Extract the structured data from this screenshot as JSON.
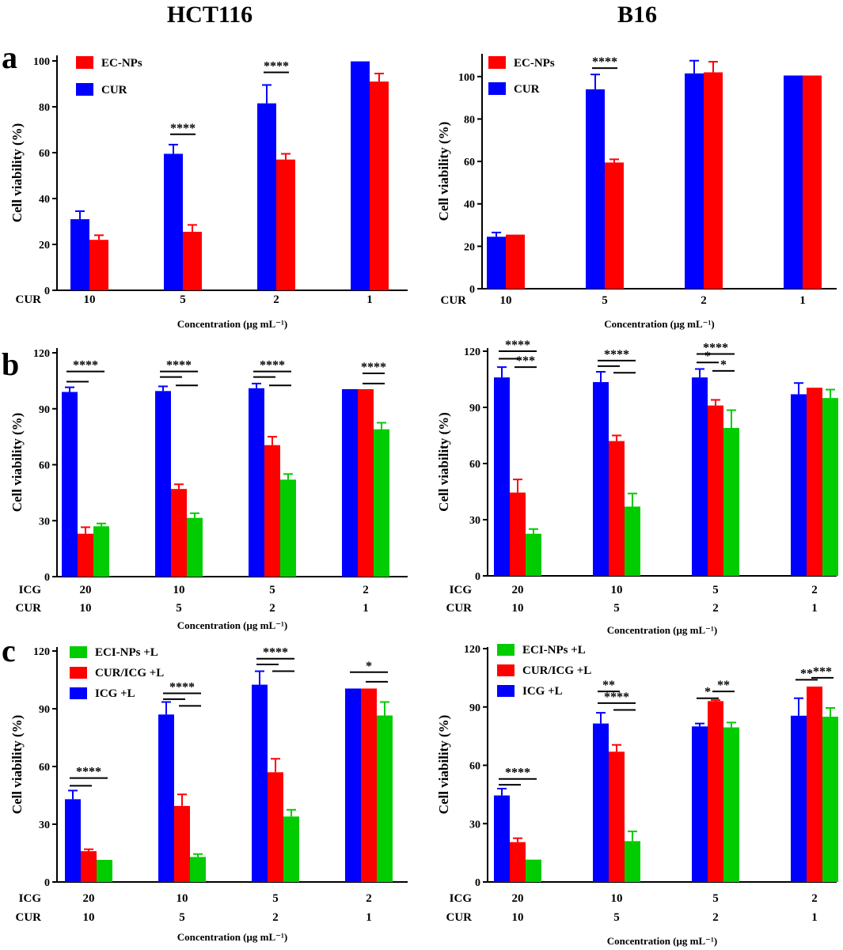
{
  "figure": {
    "column_titles": [
      "HCT116",
      "B16"
    ],
    "panel_labels": [
      "a",
      "b",
      "c"
    ]
  },
  "chart_data": [
    {
      "id": "a1",
      "type": "bar",
      "panel": "a",
      "cell_line": "HCT116",
      "ylabel": "Cell viability (%)",
      "xlabel": "Concentration (μg mL⁻¹)",
      "ylim": [
        0,
        100
      ],
      "yticks": [
        "0",
        "20",
        "40",
        "60",
        "80",
        "100"
      ],
      "row_labels": [
        {
          "name": "CUR",
          "values": [
            "10",
            "5",
            "2",
            "1"
          ]
        }
      ],
      "legend": [
        "EC-NPs",
        "CUR"
      ],
      "series": [
        {
          "name": "CUR",
          "color": "#0000ff",
          "values": [
            31,
            59.5,
            81.5,
            99.8
          ],
          "errors": [
            3.5,
            4,
            8,
            0
          ]
        },
        {
          "name": "EC-NPs",
          "color": "#ff0000",
          "values": [
            22,
            25.5,
            57,
            91
          ],
          "errors": [
            2,
            3,
            2.5,
            3.5
          ]
        }
      ],
      "significance": [
        {
          "group": 1,
          "label": "****",
          "from": 0,
          "to": 1,
          "y": 68
        },
        {
          "group": 2,
          "label": "****",
          "from": 0,
          "to": 1,
          "y": 95
        }
      ]
    },
    {
      "id": "a2",
      "type": "bar",
      "panel": "a",
      "cell_line": "B16",
      "ylabel": "Cell viability (%)",
      "xlabel": "Concentration (μg mL⁻¹)",
      "ylim": [
        0,
        110
      ],
      "yticks": [
        "0",
        "20",
        "40",
        "60",
        "80",
        "100"
      ],
      "row_labels": [
        {
          "name": "CUR",
          "values": [
            "10",
            "5",
            "2",
            "1"
          ]
        }
      ],
      "legend": [
        "EC-NPs",
        "CUR"
      ],
      "series": [
        {
          "name": "CUR",
          "color": "#0000ff",
          "values": [
            24.5,
            94,
            101.5,
            100.5
          ],
          "errors": [
            2,
            7,
            6,
            0
          ]
        },
        {
          "name": "EC-NPs",
          "color": "#ff0000",
          "values": [
            25.5,
            59.5,
            102,
            100.5
          ],
          "errors": [
            0,
            1.5,
            5,
            0
          ]
        }
      ],
      "significance": [
        {
          "group": 1,
          "label": "****",
          "from": 0,
          "to": 1,
          "y": 104
        }
      ]
    },
    {
      "id": "b1",
      "type": "bar",
      "panel": "b",
      "cell_line": "HCT116",
      "ylabel": "Cell viability (%)",
      "xlabel": "Concentration (μg mL⁻¹)",
      "ylim": [
        0,
        120
      ],
      "yticks": [
        "0",
        "30",
        "60",
        "90",
        "120"
      ],
      "row_labels": [
        {
          "name": "ICG",
          "values": [
            "20",
            "10",
            "5",
            "2"
          ]
        },
        {
          "name": "CUR",
          "values": [
            "10",
            "5",
            "2",
            "1"
          ]
        }
      ],
      "legend": [],
      "series": [
        {
          "name": "ICG +L",
          "color": "#0000ff",
          "values": [
            99,
            99.5,
            101,
            100.5
          ],
          "errors": [
            2.5,
            2.5,
            2.5,
            0
          ]
        },
        {
          "name": "CUR/ICG +L",
          "color": "#ff0000",
          "values": [
            23,
            47,
            70.5,
            100.5
          ],
          "errors": [
            3.5,
            2.5,
            4.5,
            0
          ]
        },
        {
          "name": "ECI-NPs +L",
          "color": "#00cc00",
          "values": [
            27,
            31.5,
            52,
            79
          ],
          "errors": [
            1.5,
            2.5,
            3,
            3.5
          ]
        }
      ],
      "significance": [
        {
          "group": 0,
          "label": "****",
          "from": 0,
          "to": 2,
          "y": 110
        },
        {
          "group": 0,
          "label": "",
          "from": 0,
          "to": 1,
          "y": 104.5
        },
        {
          "group": 1,
          "label": "****",
          "from": 0,
          "to": 2,
          "y": 110
        },
        {
          "group": 1,
          "label": "",
          "from": 0,
          "to": 1,
          "y": 107
        },
        {
          "group": 1,
          "label": "",
          "from": 1,
          "to": 2,
          "y": 102.5
        },
        {
          "group": 2,
          "label": "****",
          "from": 0,
          "to": 2,
          "y": 110
        },
        {
          "group": 2,
          "label": "",
          "from": 0,
          "to": 1,
          "y": 107
        },
        {
          "group": 2,
          "label": "",
          "from": 1,
          "to": 2,
          "y": 102.5
        },
        {
          "group": 3,
          "label": "****",
          "from": 1,
          "to": 2,
          "y": 109
        },
        {
          "group": 3,
          "label": "",
          "from": 1,
          "to": 2,
          "y": 103.5
        }
      ]
    },
    {
      "id": "b2",
      "type": "bar",
      "panel": "b",
      "cell_line": "B16",
      "ylabel": "Cell viability (%)",
      "xlabel": "Concentration (μg mL⁻¹)",
      "ylim": [
        0,
        120
      ],
      "yticks": [
        "0",
        "30",
        "60",
        "90",
        "120"
      ],
      "row_labels": [
        {
          "name": "ICG",
          "values": [
            "20",
            "10",
            "5",
            "2"
          ]
        },
        {
          "name": "CUR",
          "values": [
            "10",
            "5",
            "2",
            "1"
          ]
        }
      ],
      "legend": [],
      "series": [
        {
          "name": "ICG +L",
          "color": "#0000ff",
          "values": [
            106,
            103.5,
            106,
            97
          ],
          "errors": [
            5.5,
            5.5,
            4.5,
            6
          ]
        },
        {
          "name": "CUR/ICG +L",
          "color": "#ff0000",
          "values": [
            44.5,
            72,
            91,
            100.5
          ],
          "errors": [
            7,
            3,
            3,
            0
          ]
        },
        {
          "name": "ECI-NPs +L",
          "color": "#00cc00",
          "values": [
            22.5,
            37,
            79,
            95
          ],
          "errors": [
            2.5,
            7,
            9.5,
            4.5
          ]
        }
      ],
      "significance": [
        {
          "group": 0,
          "label": "****",
          "from": 0,
          "to": 2,
          "y": 120
        },
        {
          "group": 0,
          "label": "",
          "from": 0,
          "to": 1,
          "y": 116
        },
        {
          "group": 0,
          "label": "***",
          "from": 1,
          "to": 2,
          "y": 111.5
        },
        {
          "group": 1,
          "label": "****",
          "from": 0,
          "to": 2,
          "y": 115
        },
        {
          "group": 1,
          "label": "",
          "from": 0,
          "to": 1,
          "y": 112
        },
        {
          "group": 1,
          "label": "",
          "from": 1,
          "to": 2,
          "y": 108.5
        },
        {
          "group": 2,
          "label": "****",
          "from": 0,
          "to": 2,
          "y": 118.5
        },
        {
          "group": 2,
          "label": "*",
          "from": 0,
          "to": 1,
          "y": 114
        },
        {
          "group": 2,
          "label": "*",
          "from": 1,
          "to": 2,
          "y": 109.5
        }
      ]
    },
    {
      "id": "c1",
      "type": "bar",
      "panel": "c",
      "cell_line": "HCT116",
      "ylabel": "Cell viability (%)",
      "xlabel": "Concentration (μg mL⁻¹)",
      "ylim": [
        0,
        120
      ],
      "yticks": [
        "0",
        "30",
        "60",
        "90",
        "120"
      ],
      "row_labels": [
        {
          "name": "ICG",
          "values": [
            "20",
            "10",
            "5",
            "2"
          ]
        },
        {
          "name": "CUR",
          "values": [
            "10",
            "5",
            "2",
            "1"
          ]
        }
      ],
      "legend": [
        "ECI-NPs +L",
        "CUR/ICG +L",
        "ICG +L"
      ],
      "series": [
        {
          "name": "ICG +L",
          "color": "#0000ff",
          "values": [
            43,
            87,
            102.5,
            100.5
          ],
          "errors": [
            4.5,
            6.5,
            7,
            0
          ]
        },
        {
          "name": "CUR/ICG +L",
          "color": "#ff0000",
          "values": [
            16,
            39.5,
            57,
            100.5
          ],
          "errors": [
            1,
            6,
            7,
            0
          ]
        },
        {
          "name": "ECI-NPs +L",
          "color": "#00cc00",
          "values": [
            11.5,
            13,
            34,
            86.5
          ],
          "errors": [
            0,
            1.5,
            3.5,
            7
          ]
        }
      ],
      "significance": [
        {
          "group": 0,
          "label": "****",
          "from": 0,
          "to": 2,
          "y": 54
        },
        {
          "group": 0,
          "label": "",
          "from": 0,
          "to": 1,
          "y": 50
        },
        {
          "group": 1,
          "label": "****",
          "from": 0,
          "to": 2,
          "y": 98
        },
        {
          "group": 1,
          "label": "",
          "from": 0,
          "to": 1,
          "y": 95
        },
        {
          "group": 1,
          "label": "",
          "from": 1,
          "to": 2,
          "y": 91.5
        },
        {
          "group": 2,
          "label": "****",
          "from": 0,
          "to": 2,
          "y": 116
        },
        {
          "group": 2,
          "label": "",
          "from": 0,
          "to": 1,
          "y": 113
        },
        {
          "group": 2,
          "label": "",
          "from": 1,
          "to": 2,
          "y": 109.5
        },
        {
          "group": 3,
          "label": "*",
          "from": 0,
          "to": 2,
          "y": 109
        },
        {
          "group": 3,
          "label": "",
          "from": 1,
          "to": 2,
          "y": 104
        }
      ]
    },
    {
      "id": "c2",
      "type": "bar",
      "panel": "c",
      "cell_line": "B16",
      "ylabel": "Cell viability (%)",
      "xlabel": "Concentration (μg mL⁻¹)",
      "ylim": [
        0,
        120
      ],
      "yticks": [
        "0",
        "30",
        "60",
        "90",
        "120"
      ],
      "row_labels": [
        {
          "name": "ICG",
          "values": [
            "20",
            "10",
            "5",
            "2"
          ]
        },
        {
          "name": "CUR",
          "values": [
            "10",
            "5",
            "2",
            "1"
          ]
        }
      ],
      "legend": [
        "ECI-NPs +L",
        "CUR/ICG +L",
        "ICG +L"
      ],
      "series": [
        {
          "name": "ICG +L",
          "color": "#0000ff",
          "values": [
            44.5,
            81.5,
            80,
            85.5
          ],
          "errors": [
            3.5,
            5.5,
            1.5,
            9
          ]
        },
        {
          "name": "CUR/ICG +L",
          "color": "#ff0000",
          "values": [
            20.5,
            67,
            93,
            100.5
          ],
          "errors": [
            2,
            3.5,
            0.5,
            0
          ]
        },
        {
          "name": "ECI-NPs +L",
          "color": "#00cc00",
          "values": [
            11.5,
            21,
            79.5,
            85
          ],
          "errors": [
            0,
            5,
            2.5,
            4.5
          ]
        }
      ],
      "significance": [
        {
          "group": 0,
          "label": "****",
          "from": 0,
          "to": 2,
          "y": 53
        },
        {
          "group": 0,
          "label": "",
          "from": 0,
          "to": 1,
          "y": 50
        },
        {
          "group": 1,
          "label": "**",
          "from": 0,
          "to": 1,
          "y": 98
        },
        {
          "group": 1,
          "label": "****",
          "from": 0,
          "to": 2,
          "y": 92
        },
        {
          "group": 1,
          "label": "",
          "from": 1,
          "to": 2,
          "y": 88.5
        },
        {
          "group": 2,
          "label": "*",
          "from": 0,
          "to": 1,
          "y": 94.5
        },
        {
          "group": 2,
          "label": "**",
          "from": 1,
          "to": 2,
          "y": 98
        },
        {
          "group": 3,
          "label": "**",
          "from": 0,
          "to": 1,
          "y": 104
        },
        {
          "group": 3,
          "label": "***",
          "from": 1,
          "to": 2,
          "y": 105
        }
      ]
    }
  ]
}
